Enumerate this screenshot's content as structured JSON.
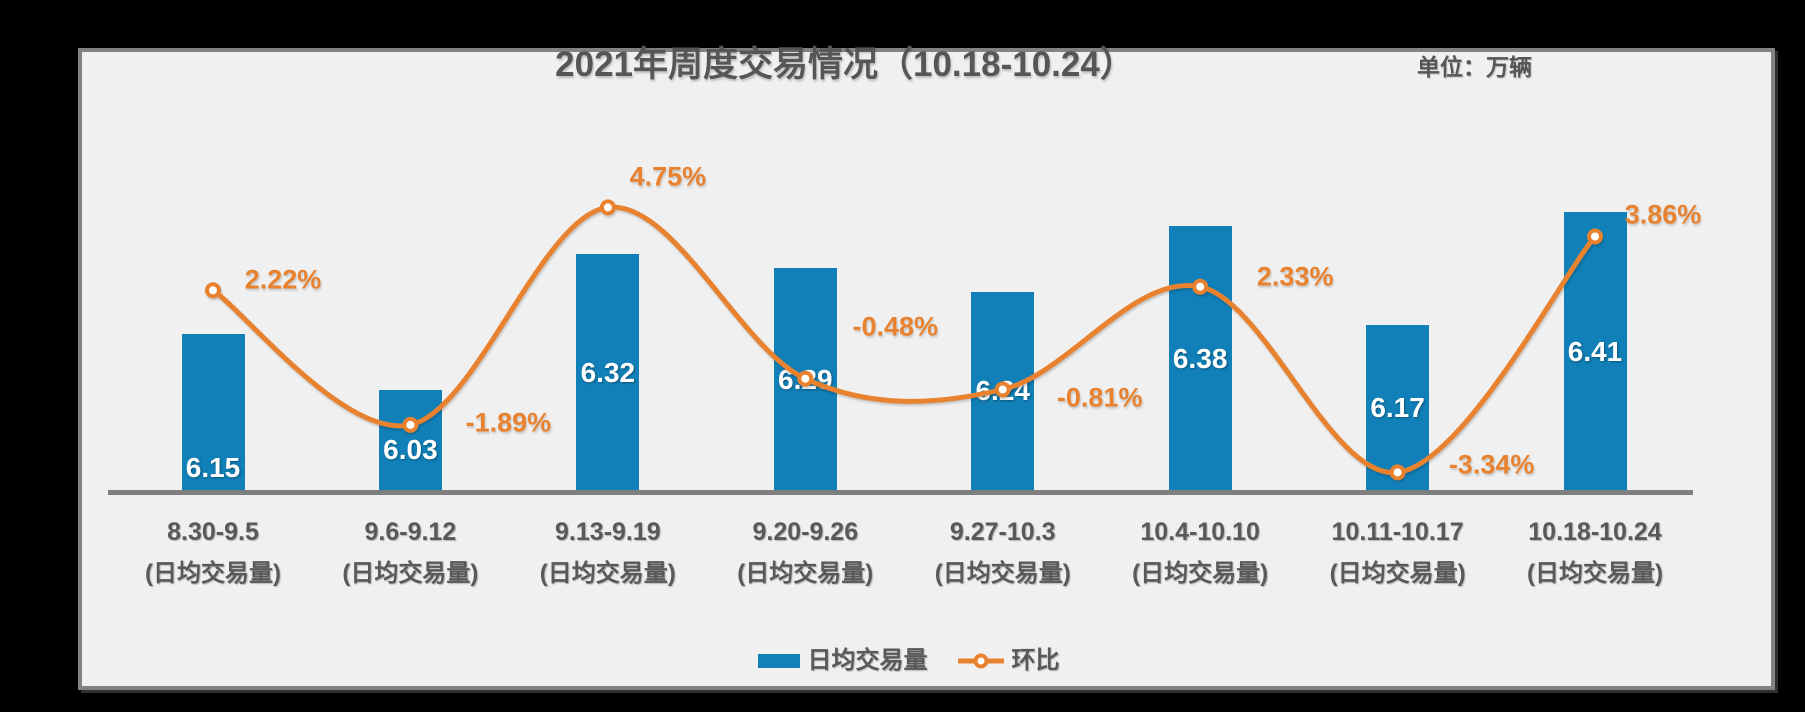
{
  "header": {
    "unit_label": "单位：万辆"
  },
  "colors": {
    "bar": "#1180B8",
    "line": "#E8822F",
    "text_gray": "#595959",
    "bar_label_text": "#FFFFFF",
    "axis_line": "#7F7F7F",
    "panel_background": "#F0F0F0",
    "panel_border": "#828282",
    "outer_background": "#000000"
  },
  "chart_data": {
    "type": "combo bar+line",
    "title": "2021年周度交易情况（10.18-10.24）",
    "categories": [
      "8.30-9.5",
      "9.6-9.12",
      "9.13-9.19",
      "9.20-9.26",
      "9.27-10.3",
      "10.4-10.10",
      "10.11-10.17",
      "10.18-10.24"
    ],
    "category_sublabel": "(日均交易量)",
    "series": [
      {
        "name": "日均交易量",
        "type": "bar",
        "axis": "primary",
        "unit": "万辆",
        "values": [
          6.15,
          6.03,
          6.32,
          6.29,
          6.24,
          6.38,
          6.17,
          6.41
        ],
        "data_labels": [
          "6.15",
          "6.03",
          "6.32",
          "6.29",
          "6.24",
          "6.38",
          "6.17",
          "6.41"
        ],
        "color": "#1180B8",
        "label_color": "#FFFFFF"
      },
      {
        "name": "环比",
        "type": "line",
        "axis": "secondary",
        "smooth": true,
        "unit": "%",
        "values": [
          2.22,
          -1.89,
          4.75,
          -0.48,
          -0.81,
          2.33,
          -3.34,
          3.86
        ],
        "data_labels": [
          "2.22%",
          "-1.89%",
          "4.75%",
          "-0.48%",
          "-0.81%",
          "2.33%",
          "-3.34%",
          "3.86%"
        ],
        "color": "#E8822F",
        "marker": "circle-white-fill"
      }
    ],
    "xlabel": "",
    "ylabel": "",
    "value_axis": {
      "visible": false,
      "approx_min": 5.8
    },
    "secondary_axis": {
      "visible": false,
      "unit": "%",
      "zero_crosses_bars": true
    },
    "grid": false,
    "legend_position": "bottom"
  }
}
